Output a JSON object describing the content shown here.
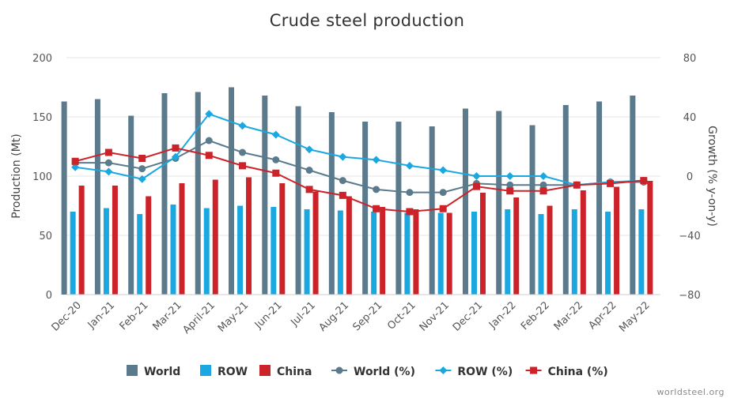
{
  "chart_data": {
    "type": "bar+line",
    "title": "Crude steel production",
    "ylabel": "Production (Mt)",
    "y2label": "Growth (% y-on-y)",
    "ylim": [
      0,
      200
    ],
    "y2lim": [
      -80,
      80
    ],
    "yticks": [
      "0",
      "50",
      "100",
      "150",
      "200"
    ],
    "y2ticks": [
      "−80",
      "−40",
      "0",
      "40",
      "80"
    ],
    "grid": true,
    "legend_position": "bottom",
    "categories": [
      "Dec-20",
      "Jan-21",
      "Feb-21",
      "Mar-21",
      "April-21",
      "May-21",
      "Jun-21",
      "Jul-21",
      "Aug-21",
      "Sep-21",
      "Oct-21",
      "Nov-21",
      "Dec-21",
      "Jan-22",
      "Feb-22",
      "Mar-22",
      "Apr-22",
      "May-22"
    ],
    "bar_series": [
      {
        "name": "World",
        "color": "#5b7a8c",
        "values": [
          163,
          165,
          151,
          170,
          171,
          175,
          168,
          159,
          154,
          146,
          146,
          142,
          157,
          155,
          143,
          160,
          163,
          168
        ]
      },
      {
        "name": "ROW",
        "color": "#1ba8e0",
        "values": [
          70,
          73,
          68,
          76,
          73,
          75,
          74,
          72,
          71,
          70,
          69,
          69,
          70,
          72,
          68,
          72,
          70,
          72
        ]
      },
      {
        "name": "China",
        "color": "#cc2229",
        "values": [
          92,
          92,
          83,
          94,
          97,
          99,
          94,
          87,
          83,
          74,
          72,
          69,
          86,
          82,
          75,
          88,
          91,
          96
        ]
      }
    ],
    "line_series": [
      {
        "name": "World (%)",
        "color": "#5b7a8c",
        "marker": "circle",
        "values": [
          9,
          9,
          5,
          12,
          24,
          16,
          11,
          4,
          -3,
          -9,
          -11,
          -11,
          -5,
          -6,
          -6,
          -6,
          -4,
          -4
        ]
      },
      {
        "name": "ROW (%)",
        "color": "#1ba8e0",
        "marker": "diamond",
        "values": [
          6,
          3,
          -2,
          13,
          42,
          34,
          28,
          18,
          13,
          11,
          7,
          4,
          0,
          0,
          0,
          -6,
          -4,
          -3
        ]
      },
      {
        "name": "China (%)",
        "color": "#cc2229",
        "marker": "square",
        "values": [
          10,
          16,
          12,
          19,
          14,
          7,
          2,
          -9,
          -13,
          -22,
          -24,
          -22,
          -7,
          -10,
          -10,
          -6,
          -5,
          -3
        ]
      }
    ]
  },
  "credit": "worldsteel.org"
}
